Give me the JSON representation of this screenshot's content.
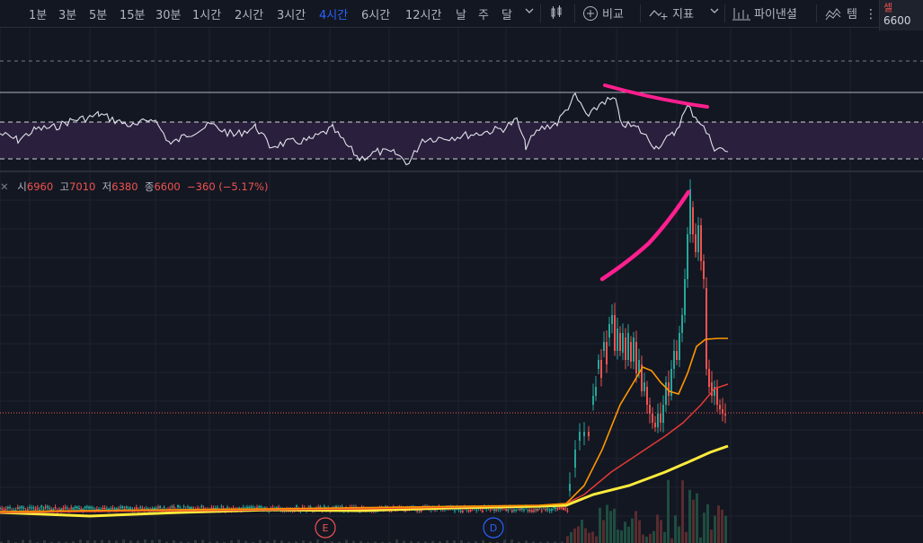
{
  "toolbar": {
    "timeframes": [
      "1분",
      "3분",
      "5분",
      "15분",
      "30분",
      "1시간",
      "2시간",
      "3시간",
      "4시간",
      "6시간",
      "12시간",
      "날",
      "주",
      "달"
    ],
    "active_timeframe": "4시간",
    "compare_label": "비교",
    "indicators_label": "지표",
    "pine_label": "파이낸셜",
    "more_label": "템",
    "icons": [
      "chevron-down-icon",
      "candles-icon",
      "plus-circle-icon",
      "indicators-icon",
      "pine-icon",
      "template-icon",
      "grip-icon"
    ]
  },
  "price_tag": {
    "label": "셀",
    "value": "6600"
  },
  "legend": {
    "open_label": "시",
    "open": "6960",
    "high_label": "고",
    "high": "7010",
    "low_label": "저",
    "low": "6380",
    "close_label": "종",
    "close": "6600",
    "change": "−360 (−5.17%)"
  },
  "markers": [
    "E",
    "D"
  ],
  "colors": {
    "background": "#131722",
    "up": "#26a69a",
    "down": "#ef5350",
    "rsi_band": "#2a1f3d",
    "annotation": "#ff1f8e",
    "ma_orange": "#ff9800",
    "ma_red": "#e53935",
    "ma_yellow": "#ffeb3b"
  }
}
